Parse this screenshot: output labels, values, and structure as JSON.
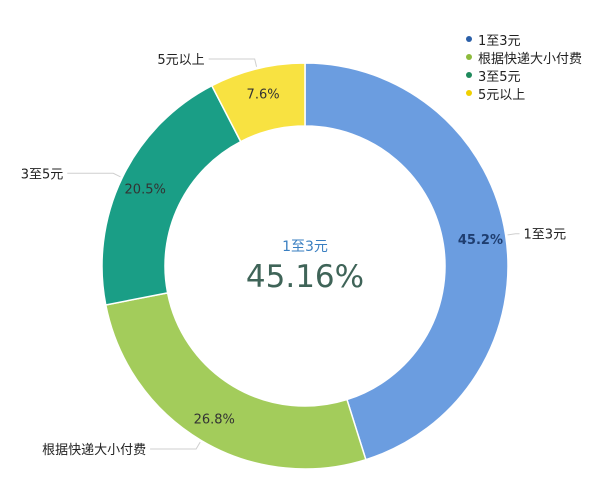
{
  "chart_data": {
    "type": "pie",
    "donut": true,
    "categories": [
      "1至3元",
      "根据快递大小付费",
      "3至5元",
      "5元以上"
    ],
    "values": [
      45.2,
      26.8,
      20.5,
      7.6
    ],
    "value_labels": [
      "45.2%",
      "26.8%",
      "20.5%",
      "7.6%"
    ],
    "colors": [
      "#6b9de0",
      "#a3cc5b",
      "#1a9e86",
      "#f8e241"
    ],
    "legend_dot_colors": [
      "#2b5fa8",
      "#8dbb3c",
      "#1f8a5c",
      "#f0d000"
    ],
    "legend": {
      "position": "top-right",
      "items": [
        "1至3元",
        "根据快递大小付费",
        "3至5元",
        "5元以上"
      ]
    },
    "center": {
      "category": "1至3元",
      "value": "45.16%"
    }
  }
}
